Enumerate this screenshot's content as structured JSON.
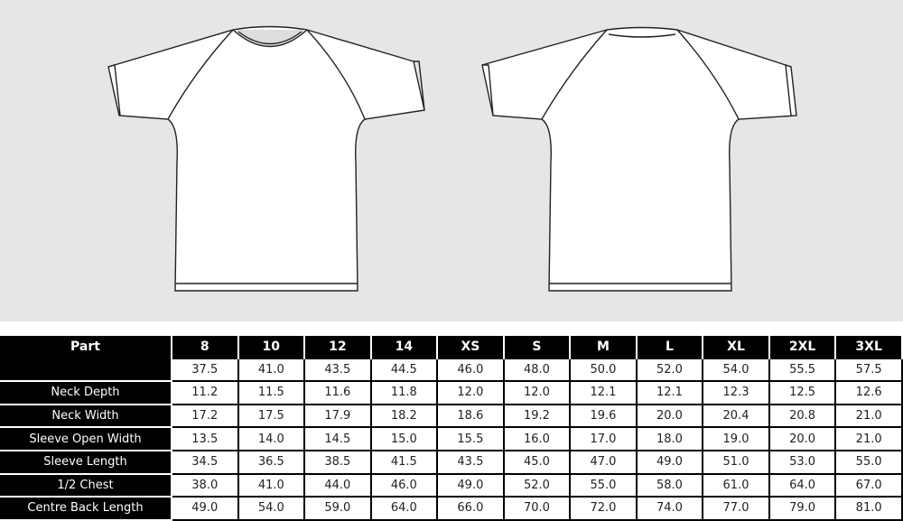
{
  "illustrations": {
    "front": "t-shirt-front",
    "back": "t-shirt-back"
  },
  "table": {
    "headers": [
      "Part",
      "8",
      "10",
      "12",
      "14",
      "XS",
      "S",
      "M",
      "L",
      "XL",
      "2XL",
      "3XL"
    ],
    "rows": [
      {
        "part": "",
        "values": [
          "37.5",
          "41.0",
          "43.5",
          "44.5",
          "46.0",
          "48.0",
          "50.0",
          "52.0",
          "54.0",
          "55.5",
          "57.5"
        ]
      },
      {
        "part": "Neck Depth",
        "values": [
          "11.2",
          "11.5",
          "11.6",
          "11.8",
          "12.0",
          "12.0",
          "12.1",
          "12.1",
          "12.3",
          "12.5",
          "12.6"
        ]
      },
      {
        "part": "Neck Width",
        "values": [
          "17.2",
          "17.5",
          "17.9",
          "18.2",
          "18.6",
          "19.2",
          "19.6",
          "20.0",
          "20.4",
          "20.8",
          "21.0"
        ]
      },
      {
        "part": "Sleeve Open Width",
        "values": [
          "13.5",
          "14.0",
          "14.5",
          "15.0",
          "15.5",
          "16.0",
          "17.0",
          "18.0",
          "19.0",
          "20.0",
          "21.0"
        ]
      },
      {
        "part": "Sleeve Length",
        "values": [
          "34.5",
          "36.5",
          "38.5",
          "41.5",
          "43.5",
          "45.0",
          "47.0",
          "49.0",
          "51.0",
          "53.0",
          "55.0"
        ]
      },
      {
        "part": "1/2 Chest",
        "values": [
          "38.0",
          "41.0",
          "44.0",
          "46.0",
          "49.0",
          "52.0",
          "55.0",
          "58.0",
          "61.0",
          "64.0",
          "67.0"
        ]
      },
      {
        "part": "Centre Back Length",
        "values": [
          "49.0",
          "54.0",
          "59.0",
          "64.0",
          "66.0",
          "70.0",
          "72.0",
          "74.0",
          "77.0",
          "79.0",
          "81.0"
        ]
      }
    ]
  }
}
